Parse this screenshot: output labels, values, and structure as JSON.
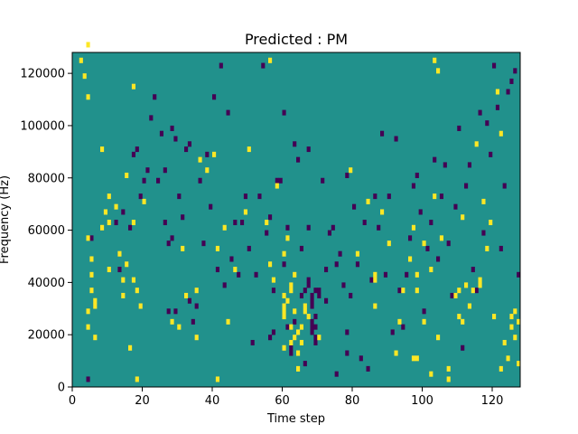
{
  "chart_data": {
    "type": "heatmap",
    "title": "Predicted : PM",
    "xlabel": "Time step",
    "ylabel": "Frequency (Hz)",
    "xlim": [
      0,
      128
    ],
    "ylim": [
      0,
      128000
    ],
    "x_ticks": [
      0,
      20,
      40,
      60,
      80,
      100,
      120
    ],
    "y_ticks": [
      0,
      20000,
      40000,
      60000,
      80000,
      100000,
      120000
    ],
    "x_tick_labels": [
      "0",
      "20",
      "40",
      "60",
      "80",
      "100",
      "120"
    ],
    "y_tick_labels": [
      "0",
      "20000",
      "40000",
      "60000",
      "80000",
      "100000",
      "120000"
    ],
    "grid": false,
    "colormap": "viridis",
    "colors": {
      "background": "#21918c",
      "high": "#fde725",
      "low": "#440154"
    },
    "rows": 64,
    "cols": 128,
    "cells_high": [
      [
        2,
        62
      ],
      [
        3,
        59
      ],
      [
        4,
        55
      ],
      [
        4,
        65
      ],
      [
        4,
        28
      ],
      [
        4,
        14
      ],
      [
        4,
        11
      ],
      [
        5,
        18
      ],
      [
        5,
        21
      ],
      [
        5,
        24
      ],
      [
        6,
        9
      ],
      [
        6,
        16
      ],
      [
        6,
        15
      ],
      [
        8,
        45
      ],
      [
        8,
        30
      ],
      [
        9,
        33
      ],
      [
        10,
        22
      ],
      [
        10,
        31
      ],
      [
        10,
        36
      ],
      [
        12,
        34
      ],
      [
        13,
        25
      ],
      [
        14,
        17
      ],
      [
        14,
        20
      ],
      [
        15,
        23
      ],
      [
        15,
        40
      ],
      [
        16,
        7
      ],
      [
        17,
        20
      ],
      [
        17,
        31
      ],
      [
        17,
        57
      ],
      [
        18,
        1
      ],
      [
        18,
        18
      ],
      [
        19,
        15
      ],
      [
        20,
        35
      ],
      [
        28,
        12
      ],
      [
        30,
        11
      ],
      [
        35,
        18
      ],
      [
        35,
        9
      ],
      [
        36,
        43
      ],
      [
        38,
        41
      ],
      [
        40,
        44
      ],
      [
        41,
        26
      ],
      [
        41,
        1
      ],
      [
        46,
        22
      ],
      [
        50,
        45
      ],
      [
        55,
        31
      ],
      [
        56,
        62
      ],
      [
        57,
        20
      ],
      [
        58,
        38
      ],
      [
        60,
        13
      ],
      [
        60,
        14
      ],
      [
        60,
        7
      ],
      [
        60,
        15
      ],
      [
        60,
        17
      ],
      [
        61,
        16
      ],
      [
        62,
        18
      ],
      [
        62,
        8
      ],
      [
        62,
        11
      ],
      [
        62,
        19
      ],
      [
        63,
        21
      ],
      [
        63,
        9
      ],
      [
        63,
        14
      ],
      [
        64,
        3
      ],
      [
        64,
        6
      ],
      [
        64,
        10
      ],
      [
        65,
        8
      ],
      [
        66,
        14
      ],
      [
        66,
        15
      ],
      [
        70,
        9
      ],
      [
        79,
        41
      ],
      [
        81,
        25
      ],
      [
        84,
        35
      ],
      [
        86,
        15
      ],
      [
        86,
        20
      ],
      [
        86,
        21
      ],
      [
        88,
        33
      ],
      [
        90,
        27
      ],
      [
        92,
        6
      ],
      [
        93,
        12
      ],
      [
        94,
        18
      ],
      [
        96,
        24
      ],
      [
        97,
        5
      ],
      [
        98,
        18
      ],
      [
        98,
        5
      ],
      [
        100,
        12
      ],
      [
        102,
        22
      ],
      [
        103,
        36
      ],
      [
        103,
        62
      ],
      [
        104,
        60
      ],
      [
        107,
        1
      ],
      [
        107,
        3
      ],
      [
        109,
        17
      ],
      [
        110,
        13
      ],
      [
        111,
        32
      ],
      [
        113,
        15
      ],
      [
        114,
        18
      ],
      [
        115,
        46
      ],
      [
        117,
        35
      ],
      [
        121,
        56
      ],
      [
        122,
        48
      ],
      [
        125,
        11
      ],
      [
        125,
        13
      ],
      [
        126,
        14
      ],
      [
        126,
        9
      ],
      [
        127,
        12
      ],
      [
        127,
        4
      ],
      [
        124,
        5
      ],
      [
        123,
        8
      ],
      [
        122,
        3
      ],
      [
        120,
        13
      ],
      [
        102,
        2
      ],
      [
        104,
        9
      ],
      [
        43,
        30
      ],
      [
        44,
        12
      ],
      [
        56,
        23
      ],
      [
        60,
        25
      ],
      [
        61,
        28
      ],
      [
        65,
        11
      ],
      [
        67,
        13
      ],
      [
        49,
        33
      ],
      [
        31,
        26
      ],
      [
        32,
        17
      ],
      [
        97,
        30
      ],
      [
        98,
        21
      ],
      [
        100,
        27
      ],
      [
        105,
        28
      ],
      [
        110,
        18
      ],
      [
        111,
        12
      ],
      [
        112,
        19
      ],
      [
        116,
        19
      ],
      [
        116,
        20
      ],
      [
        118,
        26
      ],
      [
        119,
        31
      ]
    ],
    "cells_low": [
      [
        4,
        1
      ],
      [
        5,
        28
      ],
      [
        12,
        31
      ],
      [
        13,
        22
      ],
      [
        14,
        33
      ],
      [
        16,
        30
      ],
      [
        17,
        44
      ],
      [
        18,
        45
      ],
      [
        19,
        36
      ],
      [
        20,
        39
      ],
      [
        21,
        41
      ],
      [
        22,
        51
      ],
      [
        23,
        55
      ],
      [
        24,
        39
      ],
      [
        25,
        48
      ],
      [
        26,
        41
      ],
      [
        27,
        27
      ],
      [
        28,
        49
      ],
      [
        29,
        47
      ],
      [
        31,
        32
      ],
      [
        32,
        45
      ],
      [
        33,
        46
      ],
      [
        33,
        16
      ],
      [
        34,
        12
      ],
      [
        35,
        15
      ],
      [
        36,
        39
      ],
      [
        37,
        27
      ],
      [
        38,
        44
      ],
      [
        39,
        34
      ],
      [
        40,
        55
      ],
      [
        41,
        22
      ],
      [
        42,
        61
      ],
      [
        43,
        19
      ],
      [
        44,
        52
      ],
      [
        45,
        24
      ],
      [
        46,
        31
      ],
      [
        47,
        21
      ],
      [
        48,
        31
      ],
      [
        49,
        36
      ],
      [
        50,
        26
      ],
      [
        51,
        8
      ],
      [
        52,
        21
      ],
      [
        53,
        36
      ],
      [
        54,
        61
      ],
      [
        55,
        29
      ],
      [
        56,
        32
      ],
      [
        57,
        18
      ],
      [
        58,
        39
      ],
      [
        59,
        39
      ],
      [
        60,
        52
      ],
      [
        61,
        30
      ],
      [
        62,
        7
      ],
      [
        63,
        46
      ],
      [
        64,
        43
      ],
      [
        65,
        26
      ],
      [
        66,
        4
      ],
      [
        67,
        30
      ],
      [
        67,
        45
      ],
      [
        68,
        10
      ],
      [
        68,
        11
      ],
      [
        68,
        12
      ],
      [
        68,
        15
      ],
      [
        68,
        16
      ],
      [
        69,
        11
      ],
      [
        69,
        13
      ],
      [
        69,
        9
      ],
      [
        69,
        8
      ],
      [
        70,
        17
      ],
      [
        70,
        18
      ],
      [
        71,
        39
      ],
      [
        72,
        16
      ],
      [
        72,
        22
      ],
      [
        73,
        29
      ],
      [
        74,
        30
      ],
      [
        75,
        23
      ],
      [
        75,
        2
      ],
      [
        76,
        25
      ],
      [
        77,
        19
      ],
      [
        78,
        6
      ],
      [
        78,
        10
      ],
      [
        78,
        40
      ],
      [
        79,
        17
      ],
      [
        80,
        34
      ],
      [
        81,
        23
      ],
      [
        82,
        5
      ],
      [
        83,
        31
      ],
      [
        84,
        3
      ],
      [
        85,
        20
      ],
      [
        86,
        36
      ],
      [
        87,
        30
      ],
      [
        88,
        48
      ],
      [
        89,
        21
      ],
      [
        90,
        36
      ],
      [
        91,
        10
      ],
      [
        92,
        47
      ],
      [
        93,
        18
      ],
      [
        94,
        11
      ],
      [
        95,
        21
      ],
      [
        96,
        28
      ],
      [
        97,
        38
      ],
      [
        98,
        40
      ],
      [
        99,
        33
      ],
      [
        100,
        14
      ],
      [
        101,
        26
      ],
      [
        102,
        31
      ],
      [
        103,
        43
      ],
      [
        104,
        24
      ],
      [
        105,
        36
      ],
      [
        106,
        42
      ],
      [
        107,
        27
      ],
      [
        108,
        17
      ],
      [
        109,
        34
      ],
      [
        110,
        49
      ],
      [
        111,
        7
      ],
      [
        112,
        38
      ],
      [
        113,
        42
      ],
      [
        114,
        22
      ],
      [
        115,
        18
      ],
      [
        116,
        52
      ],
      [
        117,
        29
      ],
      [
        118,
        50
      ],
      [
        119,
        44
      ],
      [
        120,
        61
      ],
      [
        121,
        53
      ],
      [
        122,
        26
      ],
      [
        123,
        38
      ],
      [
        124,
        56
      ],
      [
        125,
        58
      ],
      [
        126,
        60
      ],
      [
        127,
        21
      ],
      [
        26,
        31
      ],
      [
        27,
        14
      ],
      [
        28,
        28
      ],
      [
        29,
        14
      ],
      [
        30,
        36
      ],
      [
        60,
        23
      ],
      [
        61,
        11
      ],
      [
        65,
        17
      ],
      [
        66,
        18
      ],
      [
        67,
        19
      ],
      [
        67,
        20
      ],
      [
        68,
        17
      ],
      [
        69,
        18
      ],
      [
        56,
        9
      ],
      [
        57,
        10
      ],
      [
        62,
        6
      ],
      [
        63,
        12
      ]
    ]
  }
}
